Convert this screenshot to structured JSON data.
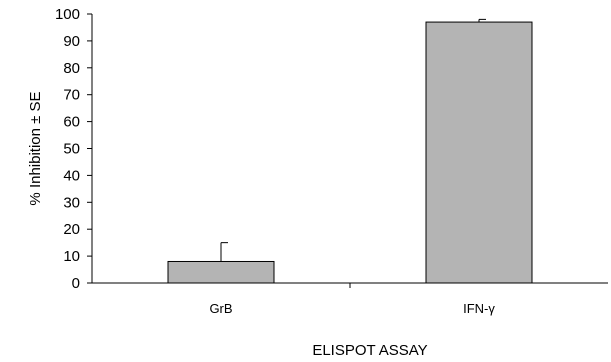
{
  "chart_data": {
    "type": "bar",
    "categories": [
      "GrB",
      "IFN-γ"
    ],
    "values": [
      8,
      97
    ],
    "error_plus": [
      7,
      1
    ],
    "xlabel": "ELISPOT ASSAY",
    "ylabel": "% Inhibition ± SE",
    "ylim": [
      0,
      100
    ],
    "yticks": [
      0,
      10,
      20,
      30,
      40,
      50,
      60,
      70,
      80,
      90,
      100
    ],
    "grid": false,
    "legend": "none",
    "bar_color": "#b4b4b4",
    "edge_color": "#000000"
  }
}
